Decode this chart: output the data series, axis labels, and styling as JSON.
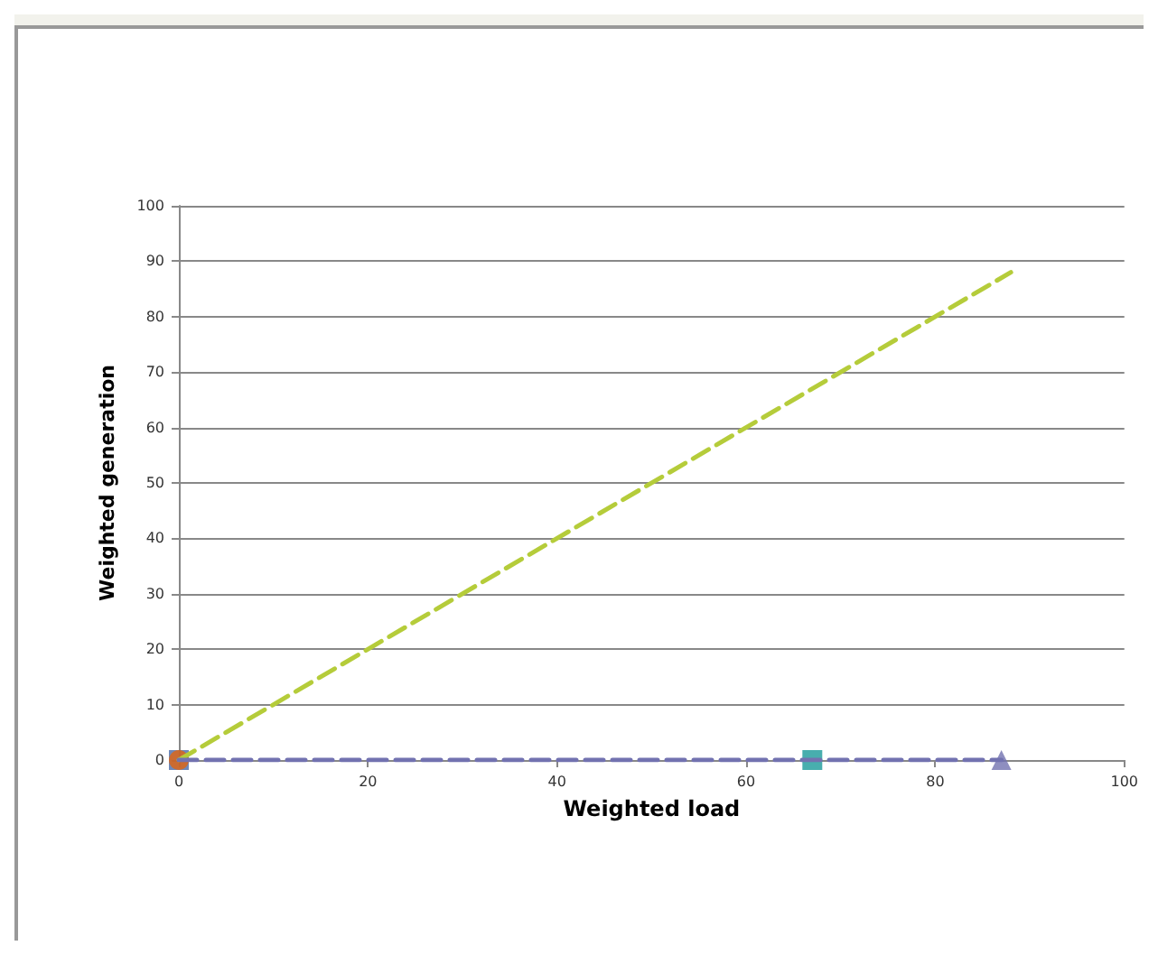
{
  "chart_data": {
    "type": "line",
    "xlabel": "Weighted load",
    "ylabel": "Weighted generation",
    "xlim": [
      0,
      100
    ],
    "xticks": [
      0,
      20,
      40,
      60,
      80,
      100
    ],
    "ylim": [
      0,
      100
    ],
    "yticks": [
      0,
      10,
      20,
      30,
      40,
      50,
      60,
      70,
      80,
      90,
      100
    ],
    "grid": "y",
    "series": [
      {
        "color": "#b5cc3a",
        "x": [
          0,
          88
        ],
        "values": [
          0,
          88
        ],
        "marker": "none",
        "line_style": "dashed"
      },
      {
        "color": "#7272b0",
        "x": [
          0,
          87
        ],
        "values": [
          0,
          0
        ],
        "marker": "none",
        "line_style": "dashed"
      },
      {
        "type": "scatter",
        "color": "#7272b0",
        "x": [
          87
        ],
        "values": [
          0
        ],
        "marker": "triangle"
      },
      {
        "type": "scatter",
        "color": "#1a9a9a",
        "x": [
          67
        ],
        "values": [
          0
        ],
        "marker": "square"
      },
      {
        "type": "scatter",
        "color": "#4a6aa8",
        "x": [
          0
        ],
        "values": [
          0
        ],
        "marker": "square"
      },
      {
        "type": "scatter",
        "color": "#e2640f",
        "x": [
          0
        ],
        "values": [
          0
        ],
        "marker": "circle"
      }
    ]
  }
}
